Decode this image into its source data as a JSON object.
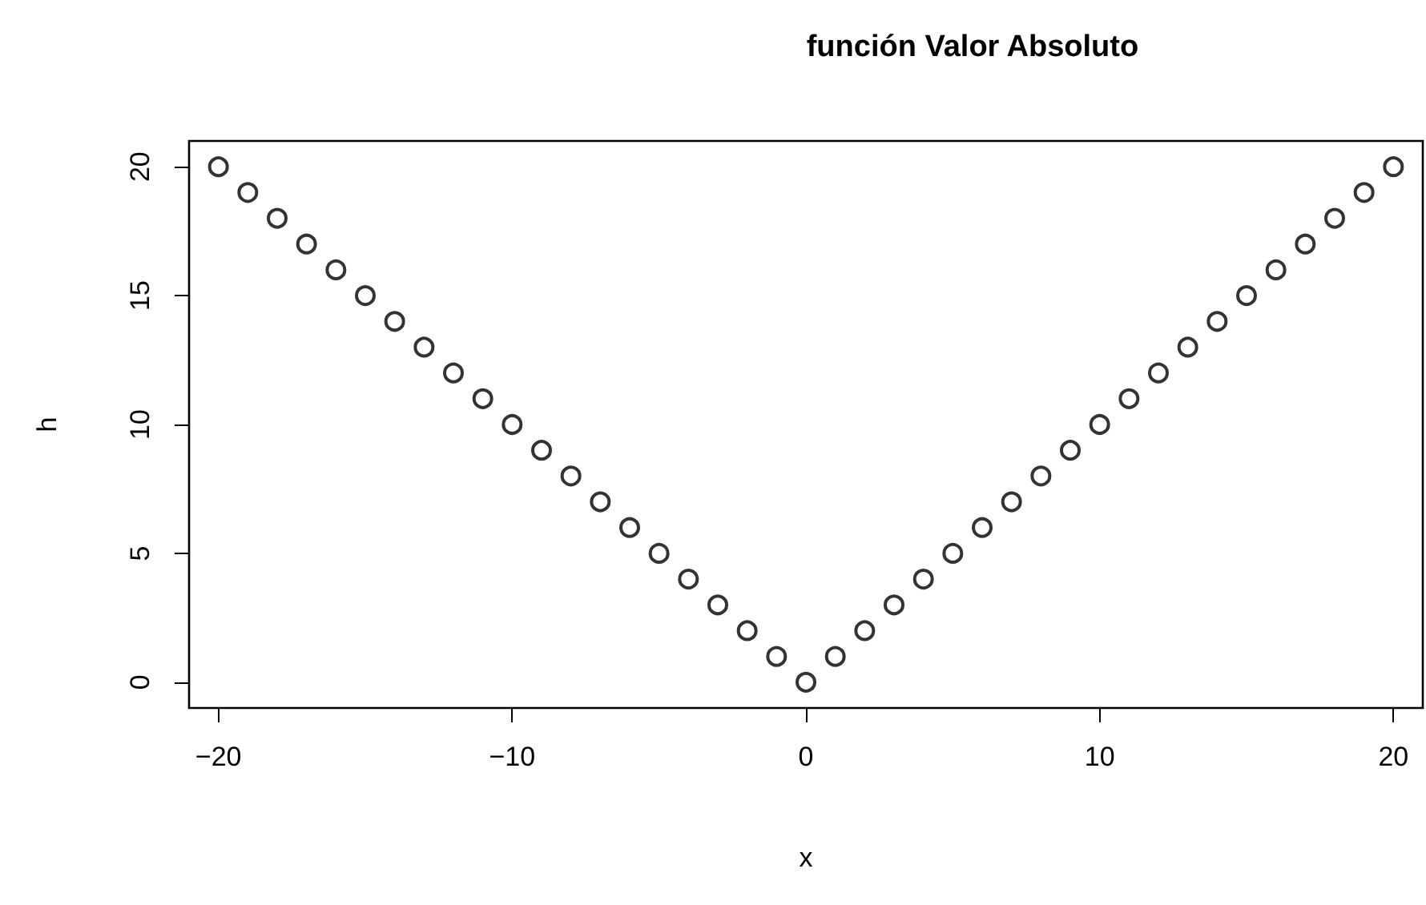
{
  "chart_data": {
    "type": "scatter",
    "title": "función Valor Absoluto",
    "xlabel": "x",
    "ylabel": "h",
    "x": [
      -20,
      -19,
      -18,
      -17,
      -16,
      -15,
      -14,
      -13,
      -12,
      -11,
      -10,
      -9,
      -8,
      -7,
      -6,
      -5,
      -4,
      -3,
      -2,
      -1,
      0,
      1,
      2,
      3,
      4,
      5,
      6,
      7,
      8,
      9,
      10,
      11,
      12,
      13,
      14,
      15,
      16,
      17,
      18,
      19,
      20
    ],
    "series": [
      {
        "color": "#000000",
        "values": [
          20,
          19,
          18,
          17,
          16,
          15,
          14,
          13,
          12,
          11,
          10,
          9,
          8,
          7,
          6,
          5,
          4,
          3,
          2,
          1,
          0,
          1,
          2,
          3,
          4,
          5,
          6,
          7,
          8,
          9,
          10,
          11,
          12,
          13,
          14,
          15,
          16,
          17,
          18,
          19,
          20
        ]
      }
    ],
    "xlim": [
      -21,
      21
    ],
    "xticks": [
      -20,
      -10,
      0,
      10,
      20
    ],
    "ylim": [
      -1,
      21
    ],
    "yticks": [
      0,
      5,
      10,
      15,
      20
    ],
    "marker": "circle",
    "grid": false
  }
}
